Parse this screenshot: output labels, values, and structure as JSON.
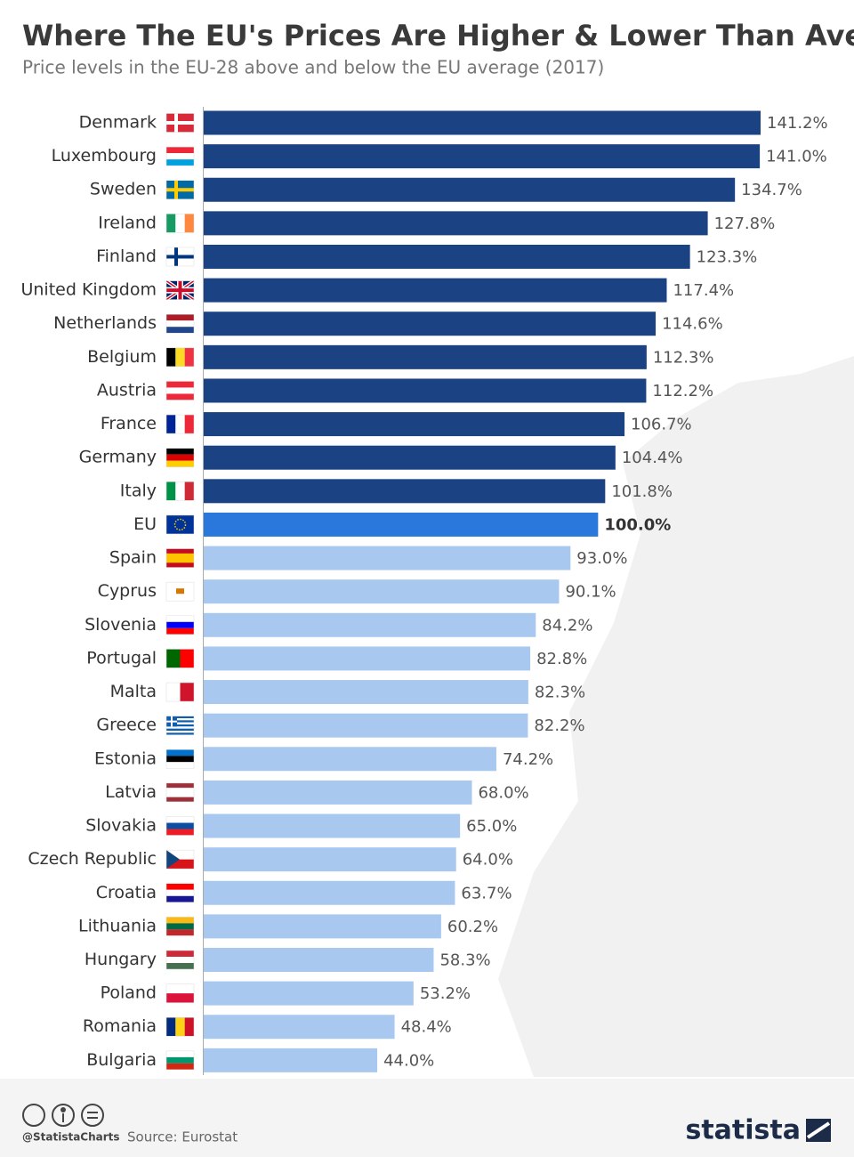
{
  "chart_data": {
    "type": "bar",
    "orientation": "horizontal",
    "title": "Where The EU's Prices Are Higher & Lower Than Average",
    "subtitle": "Price levels in the EU-28 above and below the EU average (2017)",
    "categories": [
      "Denmark",
      "Luxembourg",
      "Sweden",
      "Ireland",
      "Finland",
      "United Kingdom",
      "Netherlands",
      "Belgium",
      "Austria",
      "France",
      "Germany",
      "Italy",
      "EU",
      "Spain",
      "Cyprus",
      "Slovenia",
      "Portugal",
      "Malta",
      "Greece",
      "Estonia",
      "Latvia",
      "Slovakia",
      "Czech Republic",
      "Croatia",
      "Lithuania",
      "Hungary",
      "Poland",
      "Romania",
      "Bulgaria"
    ],
    "values": [
      141.2,
      141.0,
      134.7,
      127.8,
      123.3,
      117.4,
      114.6,
      112.3,
      112.2,
      106.7,
      104.4,
      101.8,
      100.0,
      93.0,
      90.1,
      84.2,
      82.8,
      82.3,
      82.2,
      74.2,
      68.0,
      65.0,
      64.0,
      63.7,
      60.2,
      58.3,
      53.2,
      48.4,
      44.0
    ],
    "value_labels": [
      "141.2%",
      "141.0%",
      "134.7%",
      "127.8%",
      "123.3%",
      "117.4%",
      "114.6%",
      "112.3%",
      "112.2%",
      "106.7%",
      "104.4%",
      "101.8%",
      "100.0%",
      "93.0%",
      "90.1%",
      "84.2%",
      "82.8%",
      "82.3%",
      "82.2%",
      "74.2%",
      "68.0%",
      "65.0%",
      "64.0%",
      "63.7%",
      "60.2%",
      "58.3%",
      "53.2%",
      "48.4%",
      "44.0%"
    ],
    "colors": [
      "#1b4383",
      "#1b4383",
      "#1b4383",
      "#1b4383",
      "#1b4383",
      "#1b4383",
      "#1b4383",
      "#1b4383",
      "#1b4383",
      "#1b4383",
      "#1b4383",
      "#1b4383",
      "#2a78dc",
      "#a9c8f0",
      "#a9c8f0",
      "#a9c8f0",
      "#a9c8f0",
      "#a9c8f0",
      "#a9c8f0",
      "#a9c8f0",
      "#a9c8f0",
      "#a9c8f0",
      "#a9c8f0",
      "#a9c8f0",
      "#a9c8f0",
      "#a9c8f0",
      "#a9c8f0",
      "#a9c8f0",
      "#a9c8f0"
    ],
    "highlight": "EU",
    "credit": "@StatistaCharts",
    "source": "Source: Eurostat",
    "logo": "statista"
  }
}
